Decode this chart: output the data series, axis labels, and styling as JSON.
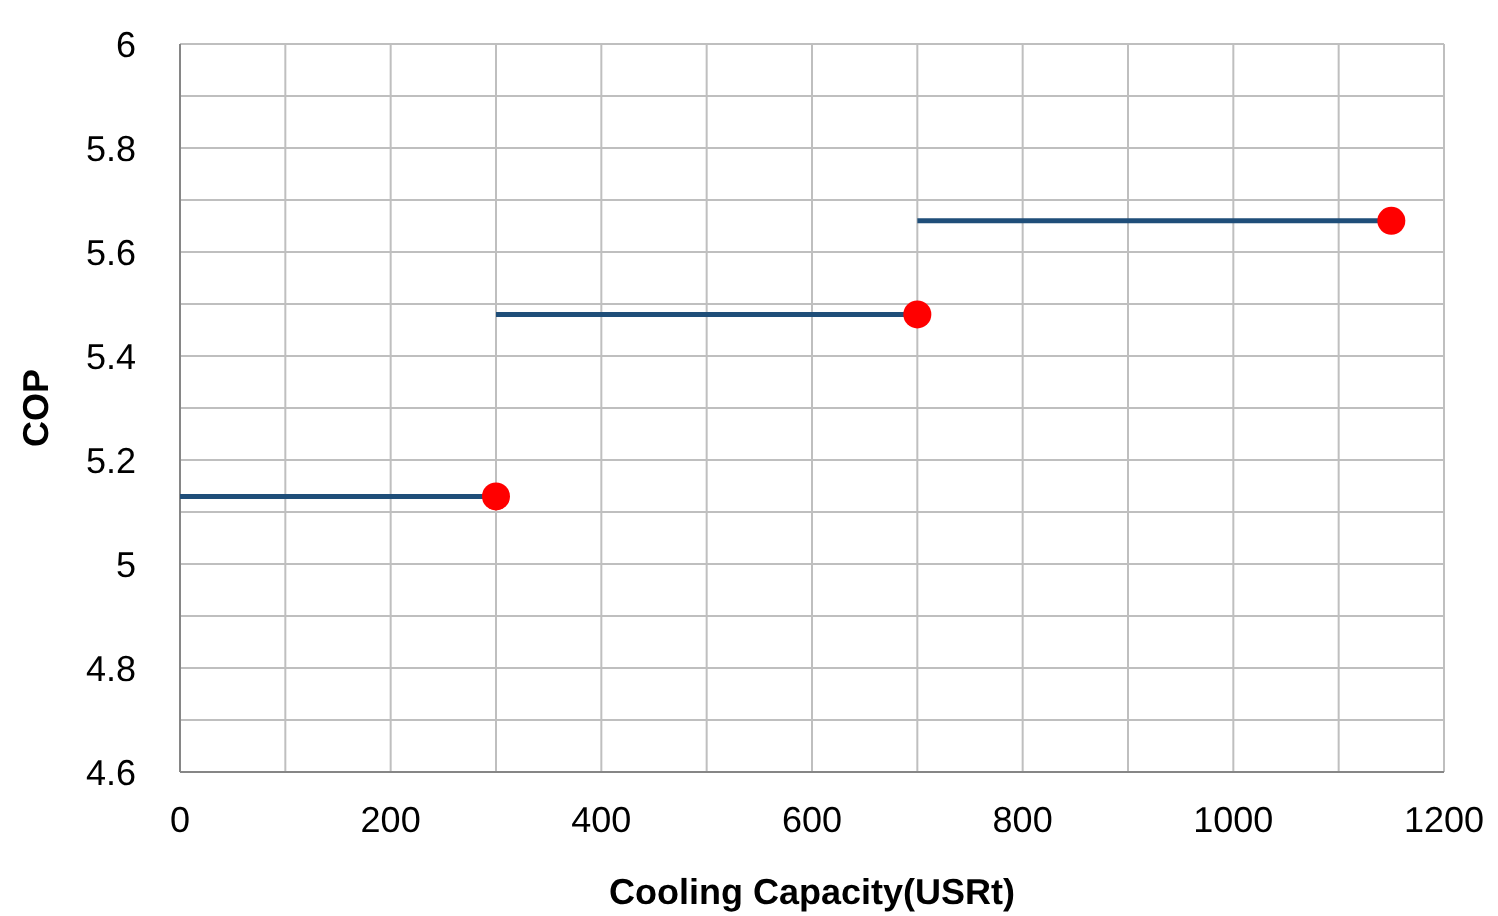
{
  "chart_data": {
    "type": "line",
    "xlabel": "Cooling Capacity(USRt)",
    "ylabel": "COP",
    "xlim": [
      0,
      1200
    ],
    "ylim": [
      4.6,
      6
    ],
    "xticks": [
      0,
      {
        "value": 100,
        "label": null
      },
      200,
      {
        "value": 300,
        "label": null
      },
      400,
      {
        "value": 500,
        "label": null
      },
      600,
      {
        "value": 700,
        "label": null
      },
      800,
      {
        "value": 900,
        "label": null
      },
      1000,
      {
        "value": 1100,
        "label": null
      },
      1200
    ],
    "yticks": [
      4.6,
      {
        "value": 4.7,
        "label": null
      },
      4.8,
      {
        "value": 4.9,
        "label": null
      },
      5,
      {
        "value": 5.1,
        "label": null
      },
      5.2,
      {
        "value": 5.3,
        "label": null
      },
      5.4,
      {
        "value": 5.5,
        "label": null
      },
      5.6,
      {
        "value": 5.7,
        "label": null
      },
      5.8,
      {
        "value": 5.9,
        "label": null
      },
      6
    ],
    "grid": true,
    "series": [
      {
        "color": "#1f4e79",
        "x": [
          0,
          300
        ],
        "values": [
          5.13,
          5.13
        ],
        "marker": "none",
        "line_style": "solid"
      },
      {
        "color": "#1f4e79",
        "x": [
          300,
          700
        ],
        "values": [
          5.48,
          5.48
        ],
        "marker": "none",
        "line_style": "solid"
      },
      {
        "color": "#1f4e79",
        "x": [
          700,
          1150
        ],
        "values": [
          5.66,
          5.66
        ],
        "marker": "none",
        "line_style": "solid"
      },
      {
        "type": "scatter",
        "color": "#ff0000",
        "x": [
          300,
          700,
          1150
        ],
        "values": [
          5.13,
          5.48,
          5.66
        ],
        "marker": "circle"
      }
    ]
  }
}
